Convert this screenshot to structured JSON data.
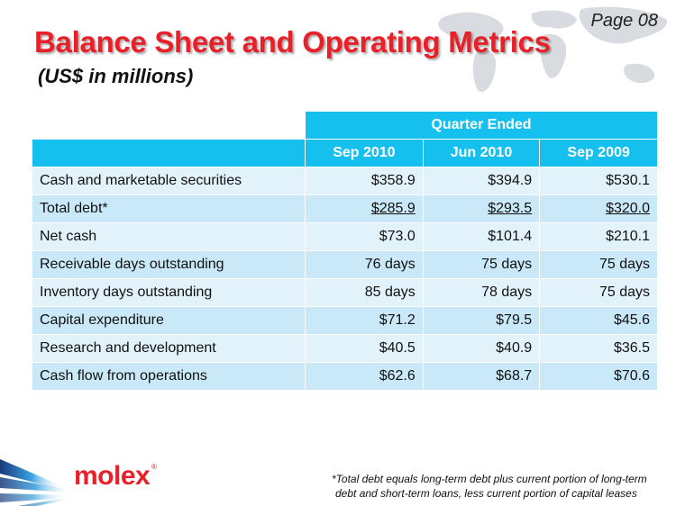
{
  "page": {
    "number": "Page 08"
  },
  "header": {
    "title": "Balance Sheet and Operating Metrics",
    "subtitle": "(US$ in millions)"
  },
  "table": {
    "group_header": "Quarter Ended",
    "columns": [
      "Sep 2010",
      "Jun 2010",
      "Sep 2009"
    ],
    "rows": [
      {
        "label": "Cash and marketable securities",
        "values": [
          "$358.9",
          "$394.9",
          "$530.1"
        ]
      },
      {
        "label": "Total debt*",
        "values": [
          "$285.9",
          "$293.5",
          "$320.0"
        ]
      },
      {
        "label": "Net cash",
        "values": [
          "$73.0",
          "$101.4",
          "$210.1"
        ]
      },
      {
        "label": "Receivable days outstanding",
        "values": [
          "76 days",
          "75 days",
          "75 days"
        ]
      },
      {
        "label": "Inventory days outstanding",
        "values": [
          "85 days",
          "78 days",
          "75 days"
        ]
      },
      {
        "label": "Capital expenditure",
        "values": [
          "$71.2",
          "$79.5",
          "$45.6"
        ]
      },
      {
        "label": "Research and development",
        "values": [
          "$40.5",
          "$40.9",
          "$36.5"
        ]
      },
      {
        "label": "Cash flow from operations",
        "values": [
          "$62.6",
          "$68.7",
          "$70.6"
        ]
      }
    ]
  },
  "logo": {
    "text": "molex",
    "mark": "®"
  },
  "footnote": {
    "line1": "*Total debt equals long-term debt plus current portion of long-term",
    "line2": "debt and short-term loans, less current portion of capital leases"
  },
  "colors": {
    "title_red": "#e8202a",
    "header_blue": "#16c0ee",
    "row_light": "#e2f2fb",
    "row_dark": "#c9e8f8"
  }
}
